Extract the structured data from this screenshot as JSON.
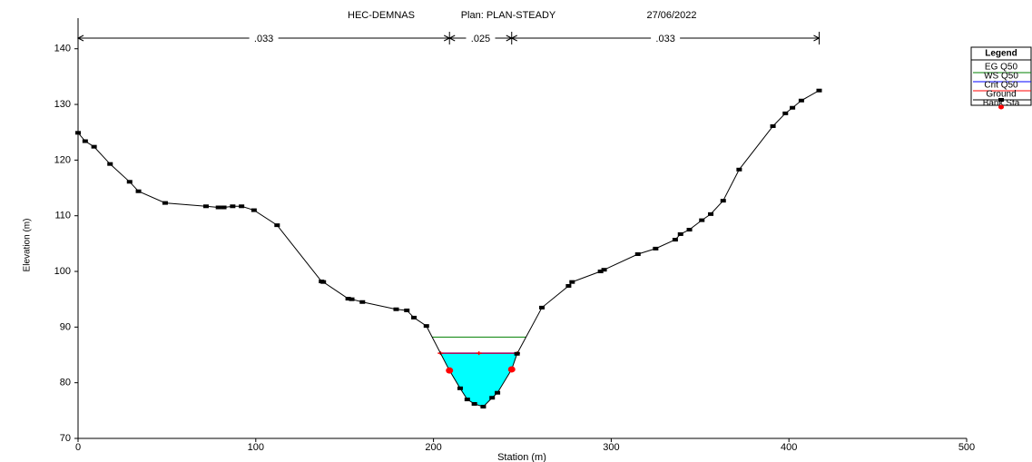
{
  "chart_data": {
    "type": "cross-section",
    "title": [
      "HEC-DEMNAS",
      "Plan: PLAN-STEADY",
      "27/06/2022"
    ],
    "x_label": "Station (m)",
    "y_label": "Elevation (m)",
    "xlim": [
      0,
      500
    ],
    "xticks": [
      0,
      100,
      200,
      300,
      400,
      500
    ],
    "ylim": [
      70,
      145.5
    ],
    "yticks": [
      70,
      80,
      90,
      100,
      110,
      120,
      130,
      140
    ],
    "water_color": "#00ffff",
    "legend_title": "Legend",
    "roughness": {
      "labels": [
        ".033",
        ".025",
        ".033"
      ],
      "stations": [
        0,
        209,
        244,
        417
      ]
    },
    "series": [
      {
        "name": "EG Q50",
        "color": "#008000",
        "values": [
          88.2
        ]
      },
      {
        "name": "WS Q50",
        "color": "#0000ff",
        "values": [
          85.3
        ]
      },
      {
        "name": "Crit Q50",
        "color": "#ff0000",
        "values": [
          85.3
        ]
      },
      {
        "name": "Ground",
        "color": "#000000",
        "x": [
          0,
          4,
          9,
          18,
          29,
          34,
          49,
          72,
          79,
          82,
          87,
          92,
          99,
          112,
          137,
          138,
          152,
          154,
          160,
          179,
          185,
          189,
          196,
          209,
          215,
          219,
          223,
          228,
          233,
          236,
          244,
          247,
          261,
          276,
          278,
          294,
          296,
          315,
          325,
          336,
          339,
          344,
          351,
          356,
          363,
          372,
          391,
          398,
          402,
          407,
          417
        ],
        "values": [
          124.9,
          123.4,
          122.4,
          119.3,
          116.1,
          114.4,
          112.3,
          111.7,
          111.5,
          111.5,
          111.7,
          111.7,
          111.0,
          108.3,
          98.2,
          98.1,
          95.1,
          95.0,
          94.5,
          93.2,
          93.0,
          91.7,
          90.2,
          82.2,
          79.0,
          77.0,
          76.2,
          75.7,
          77.3,
          78.2,
          82.4,
          85.2,
          93.5,
          97.4,
          98.1,
          100.0,
          100.3,
          103.1,
          104.1,
          105.7,
          106.7,
          107.5,
          109.2,
          110.3,
          112.7,
          118.3,
          126.1,
          128.4,
          129.4,
          130.7,
          132.5
        ]
      },
      {
        "name": "Bank Sta",
        "color": "#ff0000",
        "x": [
          209,
          244
        ],
        "values": [
          82.2,
          82.4
        ]
      }
    ]
  }
}
